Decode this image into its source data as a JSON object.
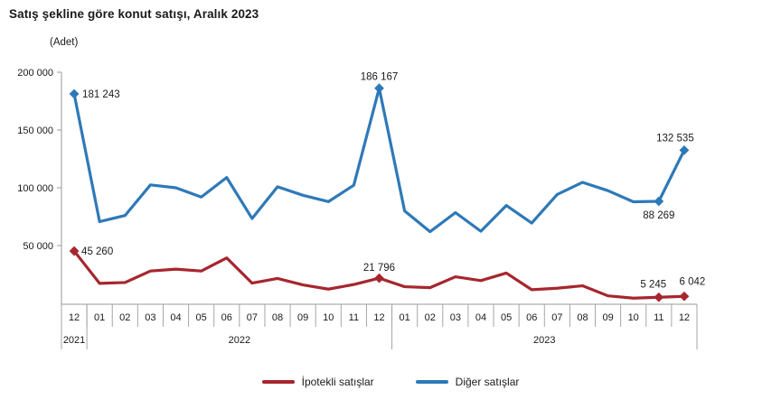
{
  "chart_data": {
    "type": "line",
    "title": "Satış şekline göre konut satışı, Aralık 2023",
    "unit_label": "(Adet)",
    "grid": false,
    "legend_position": "bottom",
    "ylim": [
      0,
      200000
    ],
    "yticks": [
      {
        "value": 50000,
        "label": "50 000"
      },
      {
        "value": 100000,
        "label": "100 000"
      },
      {
        "value": 150000,
        "label": "150 000"
      },
      {
        "value": 200000,
        "label": "200 000"
      }
    ],
    "x_months": [
      "12",
      "01",
      "02",
      "03",
      "04",
      "05",
      "06",
      "07",
      "08",
      "09",
      "10",
      "11",
      "12",
      "01",
      "02",
      "03",
      "04",
      "05",
      "06",
      "07",
      "08",
      "09",
      "10",
      "11",
      "12"
    ],
    "year_groups": [
      {
        "label": "2021",
        "span": 1
      },
      {
        "label": "2022",
        "span": 12
      },
      {
        "label": "2023",
        "span": 12
      }
    ],
    "axis_color": "#9a9a9a",
    "table_border_color": "#a6a6a6",
    "series": [
      {
        "key": "ipotekli-satislar",
        "name": "İpotekli satışlar",
        "color": "#a7262e",
        "values": [
          45260,
          17300,
          18000,
          28000,
          29600,
          28000,
          39300,
          17500,
          21500,
          16000,
          12300,
          16300,
          21796,
          14400,
          13600,
          23000,
          19700,
          26200,
          11800,
          13100,
          15200,
          6500,
          4500,
          5245,
          6042
        ],
        "labeled_points": [
          {
            "i": 0,
            "text": "45 260",
            "anchor": "start",
            "dx": 8,
            "dy": 4
          },
          {
            "i": 12,
            "text": "21 796",
            "anchor": "middle",
            "dx": 0,
            "dy": -8
          },
          {
            "i": 23,
            "text": "5 245",
            "anchor": "middle",
            "dx": -6,
            "dy": -11
          },
          {
            "i": 24,
            "text": "6 042",
            "anchor": "middle",
            "dx": 9,
            "dy": -13
          }
        ]
      },
      {
        "key": "diger-satislar",
        "name": "Diğer satışlar",
        "color": "#2e79b8",
        "values": [
          181243,
          70700,
          76000,
          102500,
          100000,
          92000,
          108900,
          73400,
          100900,
          93500,
          88000,
          102200,
          186167,
          80000,
          62000,
          78500,
          62400,
          84700,
          69500,
          94200,
          104700,
          97500,
          87900,
          88269,
          132535
        ],
        "labeled_points": [
          {
            "i": 0,
            "text": "181 243",
            "anchor": "start",
            "dx": 9,
            "dy": 4
          },
          {
            "i": 12,
            "text": "186 167",
            "anchor": "middle",
            "dx": 0,
            "dy": -9
          },
          {
            "i": 23,
            "text": "88 269",
            "anchor": "middle",
            "dx": 0,
            "dy": 19
          },
          {
            "i": 24,
            "text": "132 535",
            "anchor": "middle",
            "dx": -10,
            "dy": -10
          }
        ]
      }
    ]
  }
}
